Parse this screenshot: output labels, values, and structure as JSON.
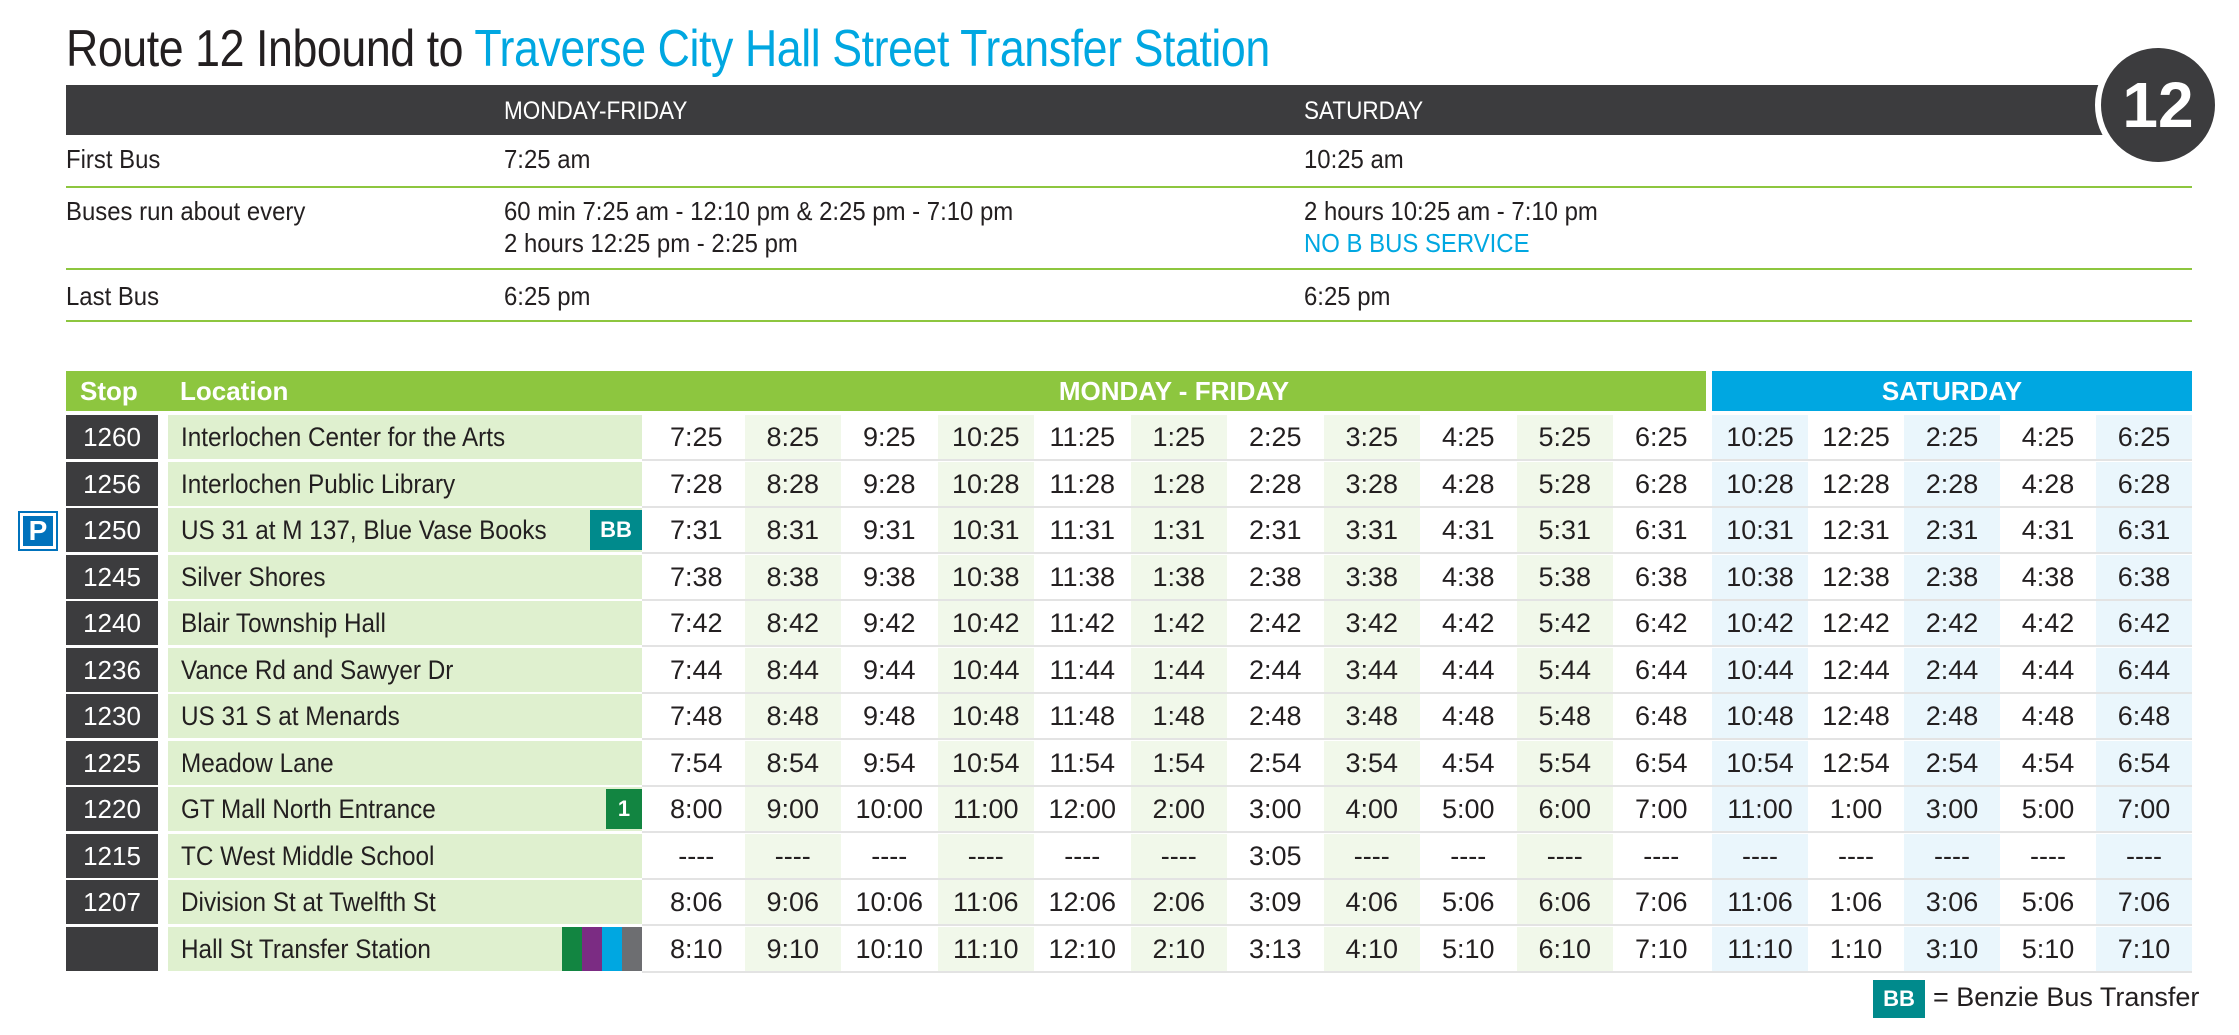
{
  "title": {
    "prefix": "Route 12 Inbound to ",
    "destination": "Traverse City Hall Street Transfer Station"
  },
  "route_number": "12",
  "summary": {
    "headers": {
      "weekday": "MONDAY-FRIDAY",
      "saturday": "SATURDAY"
    },
    "rows": [
      {
        "label": "First Bus",
        "weekday": [
          "7:25 am"
        ],
        "saturday": [
          "10:25 am"
        ]
      },
      {
        "label": "Buses run about every",
        "weekday": [
          "60 min 7:25 am - 12:10 pm & 2:25 pm - 7:10 pm",
          "2 hours 12:25 pm - 2:25 pm"
        ],
        "saturday": [
          "2 hours 10:25 am - 7:10 pm"
        ],
        "saturday_note": "NO B BUS SERVICE"
      },
      {
        "label": "Last Bus",
        "weekday": [
          "6:25 pm"
        ],
        "saturday": [
          "6:25 pm"
        ]
      }
    ]
  },
  "schedule": {
    "headers": {
      "stop": "Stop",
      "location": "Location",
      "weekday": "MONDAY - FRIDAY",
      "saturday": "SATURDAY"
    },
    "rows": [
      {
        "stop": "1260",
        "location": "Interlochen Center for the Arts",
        "weekday": [
          "7:25",
          "8:25",
          "9:25",
          "10:25",
          "11:25",
          "1:25",
          "2:25",
          "3:25",
          "4:25",
          "5:25",
          "6:25"
        ],
        "saturday": [
          "10:25",
          "12:25",
          "2:25",
          "4:25",
          "6:25"
        ]
      },
      {
        "stop": "1256",
        "location": "Interlochen Public Library",
        "weekday": [
          "7:28",
          "8:28",
          "9:28",
          "10:28",
          "11:28",
          "1:28",
          "2:28",
          "3:28",
          "4:28",
          "5:28",
          "6:28"
        ],
        "saturday": [
          "10:28",
          "12:28",
          "2:28",
          "4:28",
          "6:28"
        ]
      },
      {
        "stop": "1250",
        "location": "US 31 at M 137, Blue Vase Books",
        "badge": "BB",
        "park_ride": "P",
        "weekday": [
          "7:31",
          "8:31",
          "9:31",
          "10:31",
          "11:31",
          "1:31",
          "2:31",
          "3:31",
          "4:31",
          "5:31",
          "6:31"
        ],
        "saturday": [
          "10:31",
          "12:31",
          "2:31",
          "4:31",
          "6:31"
        ]
      },
      {
        "stop": "1245",
        "location": "Silver Shores",
        "weekday": [
          "7:38",
          "8:38",
          "9:38",
          "10:38",
          "11:38",
          "1:38",
          "2:38",
          "3:38",
          "4:38",
          "5:38",
          "6:38"
        ],
        "saturday": [
          "10:38",
          "12:38",
          "2:38",
          "4:38",
          "6:38"
        ]
      },
      {
        "stop": "1240",
        "location": "Blair Township Hall",
        "weekday": [
          "7:42",
          "8:42",
          "9:42",
          "10:42",
          "11:42",
          "1:42",
          "2:42",
          "3:42",
          "4:42",
          "5:42",
          "6:42"
        ],
        "saturday": [
          "10:42",
          "12:42",
          "2:42",
          "4:42",
          "6:42"
        ]
      },
      {
        "stop": "1236",
        "location": "Vance Rd and Sawyer Dr",
        "weekday": [
          "7:44",
          "8:44",
          "9:44",
          "10:44",
          "11:44",
          "1:44",
          "2:44",
          "3:44",
          "4:44",
          "5:44",
          "6:44"
        ],
        "saturday": [
          "10:44",
          "12:44",
          "2:44",
          "4:44",
          "6:44"
        ]
      },
      {
        "stop": "1230",
        "location": "US 31 S at Menards",
        "weekday": [
          "7:48",
          "8:48",
          "9:48",
          "10:48",
          "11:48",
          "1:48",
          "2:48",
          "3:48",
          "4:48",
          "5:48",
          "6:48"
        ],
        "saturday": [
          "10:48",
          "12:48",
          "2:48",
          "4:48",
          "6:48"
        ]
      },
      {
        "stop": "1225",
        "location": "Meadow Lane",
        "weekday": [
          "7:54",
          "8:54",
          "9:54",
          "10:54",
          "11:54",
          "1:54",
          "2:54",
          "3:54",
          "4:54",
          "5:54",
          "6:54"
        ],
        "saturday": [
          "10:54",
          "12:54",
          "2:54",
          "4:54",
          "6:54"
        ]
      },
      {
        "stop": "1220",
        "location": "GT Mall North Entrance",
        "badge": "1",
        "weekday": [
          "8:00",
          "9:00",
          "10:00",
          "11:00",
          "12:00",
          "2:00",
          "3:00",
          "4:00",
          "5:00",
          "6:00",
          "7:00"
        ],
        "saturday": [
          "11:00",
          "1:00",
          "3:00",
          "5:00",
          "7:00"
        ]
      },
      {
        "stop": "1215",
        "location": "TC West Middle School",
        "weekday": [
          "----",
          "----",
          "----",
          "----",
          "----",
          "----",
          "3:05",
          "----",
          "----",
          "----",
          "----"
        ],
        "saturday": [
          "----",
          "----",
          "----",
          "----",
          "----"
        ]
      },
      {
        "stop": "1207",
        "location": "Division St at  Twelfth St",
        "weekday": [
          "8:06",
          "9:06",
          "10:06",
          "11:06",
          "12:06",
          "2:06",
          "3:09",
          "4:06",
          "5:06",
          "6:06",
          "7:06"
        ],
        "saturday": [
          "11:06",
          "1:06",
          "3:06",
          "5:06",
          "7:06"
        ]
      },
      {
        "stop": "",
        "location": "Hall St Transfer Station",
        "transfer_colors": [
          "#128541",
          "#7b2c83",
          "#00a7e1",
          "#6d6e71"
        ],
        "weekday": [
          "8:10",
          "9:10",
          "10:10",
          "11:10",
          "12:10",
          "2:10",
          "3:13",
          "4:10",
          "5:10",
          "6:10",
          "7:10"
        ],
        "saturday": [
          "11:10",
          "1:10",
          "3:10",
          "5:10",
          "7:10"
        ]
      }
    ]
  },
  "legend": {
    "badge": "BB",
    "text": "= Benzie Bus Transfer"
  },
  "colors": {
    "dark": "#3c3c3e",
    "green": "#8dc63f",
    "blue": "#00a7e1",
    "teal": "#008a8c"
  }
}
